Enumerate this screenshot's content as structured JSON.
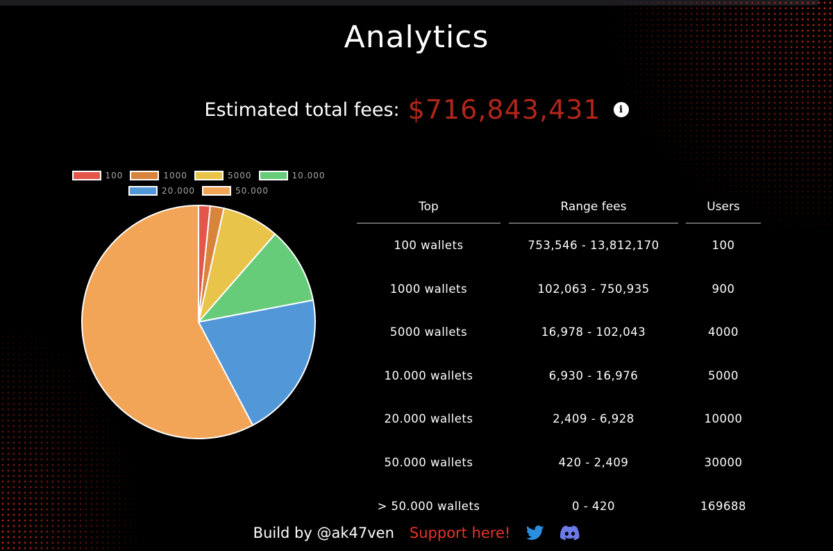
{
  "header": {
    "title": "Analytics"
  },
  "fees": {
    "label": "Estimated total fees:",
    "value": "$716,843,431",
    "info_icon": "info-icon"
  },
  "chart_data": {
    "type": "pie",
    "categories": [
      "100",
      "1000",
      "5000",
      "10.000",
      "20.000",
      "50.000"
    ],
    "values": [
      1.6,
      1.9,
      7.9,
      10.6,
      20.3,
      57.7
    ],
    "colors": [
      "#e2564c",
      "#d9843c",
      "#e8c44a",
      "#66cc7a",
      "#5297d8",
      "#f2a557"
    ],
    "legend": "top"
  },
  "table": {
    "headers": [
      "Top",
      "Range fees",
      "Users"
    ],
    "rows": [
      {
        "top": "100 wallets",
        "range": "753,546 - 13,812,170",
        "users": "100"
      },
      {
        "top": "1000 wallets",
        "range": "102,063 - 750,935",
        "users": "900"
      },
      {
        "top": "5000 wallets",
        "range": "16,978 - 102,043",
        "users": "4000"
      },
      {
        "top": "10.000 wallets",
        "range": "6,930 - 16,976",
        "users": "5000"
      },
      {
        "top": "20.000 wallets",
        "range": "2,409 - 6,928",
        "users": "10000"
      },
      {
        "top": "50.000 wallets",
        "range": "420 - 2,409",
        "users": "30000"
      },
      {
        "top": "> 50.000 wallets",
        "range": "0 - 420",
        "users": "169688"
      }
    ]
  },
  "footer": {
    "author": "Build by @ak47ven",
    "support": "Support here!",
    "twitter_icon": "twitter-icon",
    "discord_icon": "discord-icon",
    "link_color": "#e8332a",
    "icon_color": "#2b8fe0"
  },
  "accent_color": "#b2261b"
}
